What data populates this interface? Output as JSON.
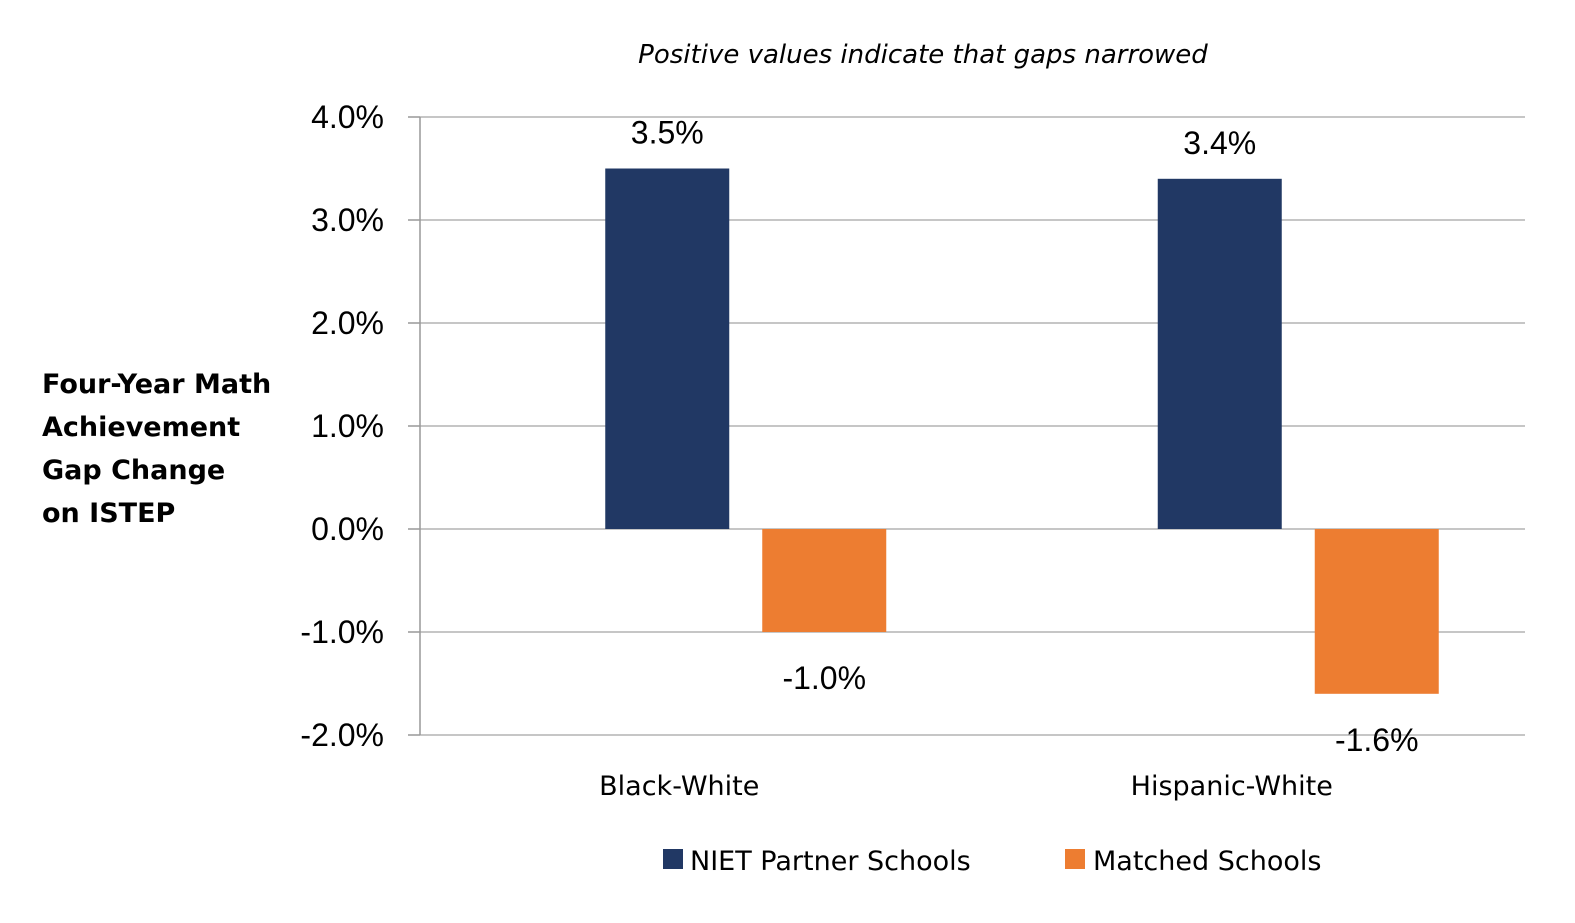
{
  "chart_data": {
    "type": "bar",
    "subtitle": "Positive values indicate that gaps narrowed",
    "ylabel_lines": [
      "Four-Year Math",
      "Achievement",
      "Gap Change",
      "on ISTEP"
    ],
    "xlabel": "",
    "categories": [
      "Black-White",
      "Hispanic-White"
    ],
    "series": [
      {
        "name": "NIET Partner Schools",
        "values": [
          3.5,
          3.4
        ],
        "labels": [
          "3.5%",
          "3.4%"
        ],
        "color": "#213864"
      },
      {
        "name": "Matched Schools",
        "values": [
          -1.0,
          -1.6
        ],
        "labels": [
          "-1.0%",
          "-1.6%"
        ],
        "color": "#ED7D31"
      }
    ],
    "ylim": [
      -2.0,
      4.0
    ],
    "yticks": [
      4.0,
      3.0,
      2.0,
      1.0,
      0.0,
      -1.0,
      -2.0
    ],
    "ytick_labels": [
      "4.0%",
      "3.0%",
      "2.0%",
      "1.0%",
      "0.0%",
      "-1.0%",
      "-2.0%"
    ],
    "grid": true,
    "legend_position": "bottom"
  }
}
